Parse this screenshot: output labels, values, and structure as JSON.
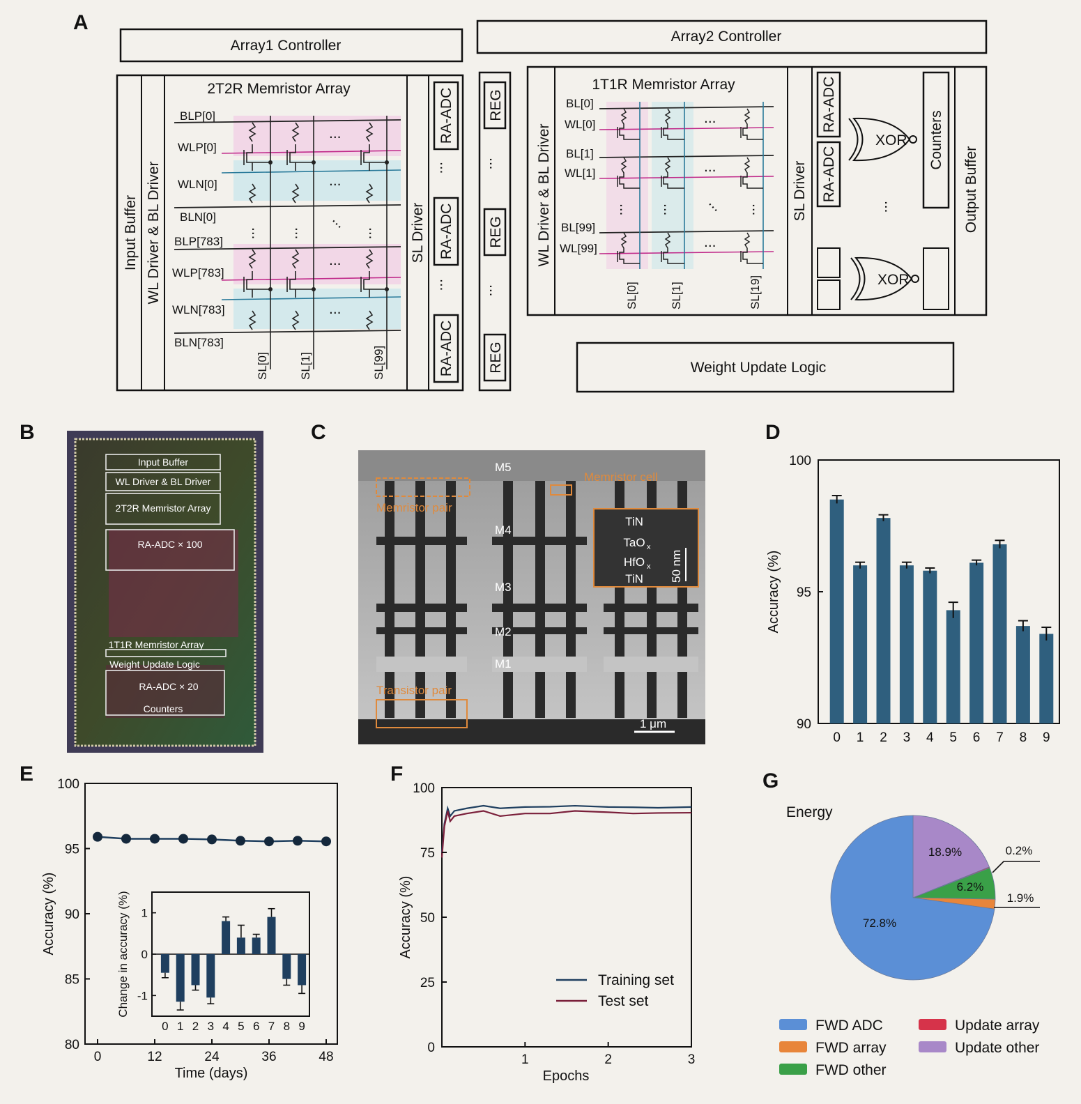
{
  "panels": {
    "A": "A",
    "B": "B",
    "C": "C",
    "D": "D",
    "E": "E",
    "F": "F",
    "G": "G"
  },
  "panelA": {
    "array1_controller": "Array1 Controller",
    "array2_controller": "Array2 Controller",
    "input_buffer": "Input Buffer",
    "wl_bl_driver": "WL Driver & BL Driver",
    "array_2t2r_title": "2T2R Memristor Array",
    "rows_2t2r": [
      "BLP[0]",
      "WLP[0]",
      "WLN[0]",
      "BLN[0]",
      "BLP[783]",
      "WLP[783]",
      "WLN[783]",
      "BLN[783]"
    ],
    "cols_2t2r": [
      "SL[0]",
      "SL[1]",
      "SL[99]"
    ],
    "sl_driver": "SL Driver",
    "ra_adc": "RA-ADC",
    "reg": "REG",
    "wl_bl_driver2": "WL Driver & BL Driver",
    "array_1t1r_title": "1T1R Memristor Array",
    "rows_1t1r": [
      "BL[0]",
      "WL[0]",
      "BL[1]",
      "WL[1]",
      "BL[99]",
      "WL[99]"
    ],
    "cols_1t1r": [
      "SL[0]",
      "SL[1]",
      "SL[19]"
    ],
    "sl_driver2": "SL Driver",
    "xor": "XOR",
    "counters": "Counters",
    "output_buffer": "Output Buffer",
    "weight_update_logic": "Weight Update Logic",
    "ellipsis": "..."
  },
  "panelB": {
    "labels": [
      "Input Buffer",
      "WL Driver & BL Driver",
      "2T2R Memristor Array",
      "RA-ADC × 100",
      "1T1R Memristor Array",
      "Weight Update Logic",
      "RA-ADC × 20",
      "Counters"
    ]
  },
  "panelC": {
    "m5": "M5",
    "m4": "M4",
    "m3": "M3",
    "m2": "M2",
    "m1": "M1",
    "memristor_pair": "Memristor pair",
    "memristor_cell": "Memristor cell",
    "transistor_pair": "Transistor pair",
    "inset_layers": [
      "TiN",
      "TaO",
      "HfO",
      "TiN"
    ],
    "inset_sub": "x",
    "inset_scale": "50 nm",
    "scale": "1 μm"
  },
  "chart_data": [
    {
      "id": "D",
      "type": "bar",
      "categories": [
        "0",
        "1",
        "2",
        "3",
        "4",
        "5",
        "6",
        "7",
        "8",
        "9"
      ],
      "values": [
        98.5,
        96.0,
        97.8,
        96.0,
        95.8,
        94.3,
        96.1,
        96.8,
        93.7,
        93.4
      ],
      "errors": [
        0.15,
        0.12,
        0.12,
        0.12,
        0.1,
        0.3,
        0.1,
        0.15,
        0.2,
        0.25
      ],
      "ylabel": "Accuracy (%)",
      "ylim": [
        90,
        100
      ],
      "yticks": [
        90,
        95,
        100
      ],
      "color": "#2f5f7e"
    },
    {
      "id": "E",
      "type": "line",
      "x": [
        0,
        6,
        12,
        18,
        24,
        30,
        36,
        42,
        48
      ],
      "y": [
        95.9,
        95.75,
        95.75,
        95.75,
        95.7,
        95.6,
        95.55,
        95.6,
        95.55
      ],
      "xlabel": "Time (days)",
      "ylabel": "Accuracy (%)",
      "xlim": [
        0,
        48
      ],
      "ylim": [
        80,
        100
      ],
      "xticks": [
        0,
        12,
        24,
        36,
        48
      ],
      "yticks": [
        80,
        85,
        90,
        95,
        100
      ],
      "inset": {
        "type": "bar",
        "categories": [
          "0",
          "1",
          "2",
          "3",
          "4",
          "5",
          "6",
          "7",
          "8",
          "9"
        ],
        "values": [
          -0.45,
          -1.15,
          -0.75,
          -1.05,
          0.8,
          0.4,
          0.4,
          0.9,
          -0.6,
          -0.75
        ],
        "errors": [
          0.12,
          0.2,
          0.12,
          0.15,
          0.1,
          0.3,
          0.08,
          0.2,
          0.15,
          0.2
        ],
        "ylabel": "Change in accuracy (%)",
        "ylim": [
          -1.5,
          1.5
        ],
        "yticks": [
          -1,
          0,
          1
        ]
      }
    },
    {
      "id": "F",
      "type": "line",
      "xlabel": "Epochs",
      "ylabel": "Accuracy (%)",
      "xlim": [
        0,
        3
      ],
      "ylim": [
        0,
        100
      ],
      "xticks": [
        1,
        2,
        3
      ],
      "yticks": [
        0,
        25,
        50,
        75,
        100
      ],
      "series": [
        {
          "name": "Training set",
          "color": "#1f3f5f",
          "x": [
            0,
            0.03,
            0.07,
            0.1,
            0.15,
            0.3,
            0.5,
            0.7,
            1.0,
            1.3,
            1.6,
            2.0,
            2.3,
            2.6,
            3.0
          ],
          "y": [
            75,
            86,
            92,
            89,
            91,
            92,
            93,
            92,
            92.5,
            92.6,
            93,
            92.5,
            92.4,
            92.2,
            92.5
          ]
        },
        {
          "name": "Test set",
          "color": "#7a1f3a",
          "x": [
            0,
            0.03,
            0.07,
            0.1,
            0.15,
            0.3,
            0.5,
            0.7,
            1.0,
            1.3,
            1.6,
            2.0,
            2.3,
            2.6,
            3.0
          ],
          "y": [
            73,
            85,
            91,
            87,
            89,
            90,
            91,
            89,
            90,
            90,
            91,
            90.5,
            90,
            90.2,
            90.3
          ]
        }
      ]
    },
    {
      "id": "G",
      "type": "pie",
      "title": "Energy",
      "slices": [
        {
          "name": "FWD ADC",
          "value": 72.8,
          "label": "72.8%",
          "color": "#5b8fd6"
        },
        {
          "name": "FWD array",
          "value": 1.9,
          "label": "1.9%",
          "color": "#e8853a"
        },
        {
          "name": "FWD other",
          "value": 6.2,
          "label": "6.2%",
          "color": "#3aa048"
        },
        {
          "name": "Update array",
          "value": 0.2,
          "label": "0.2%",
          "color": "#d6334a"
        },
        {
          "name": "Update other",
          "value": 18.9,
          "label": "18.9%",
          "color": "#a888c8"
        }
      ]
    }
  ]
}
